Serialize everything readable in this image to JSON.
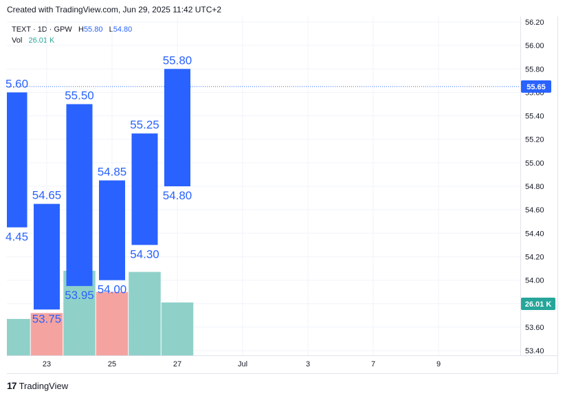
{
  "header": {
    "created": "Created with TradingView.com, Jun 29, 2025 11:42 UTC+2"
  },
  "legend": {
    "symbol": "TEXT · 1D · GPW",
    "high_label": "H",
    "high_value": "55.80",
    "low_label": "L",
    "low_value": "54.80",
    "vol_label": "Vol",
    "vol_value": "26.01 K"
  },
  "footer": {
    "brand": "TradingView"
  },
  "colors": {
    "bar": "#2962ff",
    "volume_up": "#8fd1c9",
    "volume_down": "#f5a3a0",
    "last_price_badge": "#2962ff",
    "volume_badge": "#26a69a"
  },
  "chart_data": {
    "type": "bar",
    "title": "",
    "ylim": [
      53.34,
      56.24
    ],
    "y_ticks": [
      "56.20",
      "56.00",
      "55.80",
      "55.60",
      "55.40",
      "55.20",
      "55.00",
      "54.80",
      "54.60",
      "54.40",
      "54.20",
      "54.00",
      "53.80",
      "53.60",
      "53.40"
    ],
    "x_ticks": [
      "23",
      "25",
      "27",
      "Jul",
      "3",
      "7",
      "9"
    ],
    "last_price": {
      "value": 55.65,
      "label": "55.65"
    },
    "volume_badge": {
      "label": "26.01 K"
    },
    "bars": [
      {
        "date": "Jun 20",
        "high": 55.6,
        "low": 54.45,
        "high_label": "5.60",
        "low_label": "4.45"
      },
      {
        "date": "Jun 23",
        "high": 54.65,
        "low": 53.75,
        "high_label": "54.65",
        "low_label": "53.75"
      },
      {
        "date": "Jun 24",
        "high": 55.5,
        "low": 53.95,
        "high_label": "55.50",
        "low_label": "53.95"
      },
      {
        "date": "Jun 25",
        "high": 54.85,
        "low": 54.0,
        "high_label": "54.85",
        "low_label": "54.00"
      },
      {
        "date": "Jun 26",
        "high": 55.25,
        "low": 54.3,
        "high_label": "55.25",
        "low_label": "54.30"
      },
      {
        "date": "Jun 27",
        "high": 55.8,
        "low": 54.8,
        "high_label": "55.80",
        "low_label": "54.80"
      }
    ],
    "volume": [
      {
        "date": "Jun 20",
        "level": 0.31,
        "direction": "up"
      },
      {
        "date": "Jun 23",
        "level": 0.36,
        "direction": "down"
      },
      {
        "date": "Jun 24",
        "level": 0.72,
        "direction": "up"
      },
      {
        "date": "Jun 25",
        "level": 0.54,
        "direction": "down"
      },
      {
        "date": "Jun 26",
        "level": 0.71,
        "direction": "up"
      },
      {
        "date": "Jun 27",
        "level": 0.45,
        "direction": "up"
      }
    ]
  }
}
